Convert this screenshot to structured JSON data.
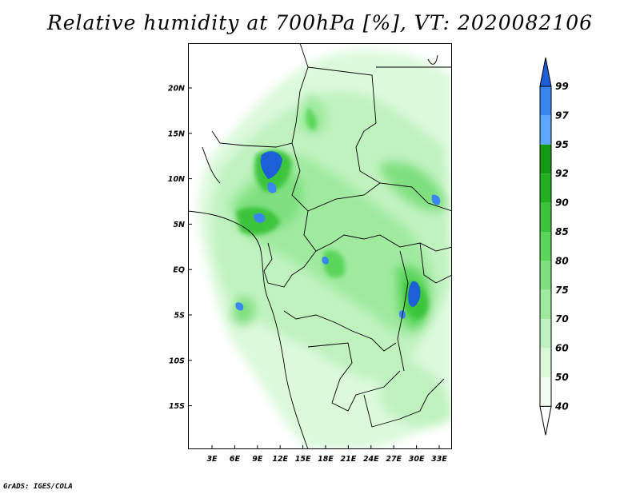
{
  "title": "Relative humidity at 700hPa [%], VT: 2020082106",
  "footer": "GrADS: IGES/COLA",
  "map": {
    "lat_labels": [
      "20N",
      "15N",
      "10N",
      "5N",
      "EQ",
      "5S",
      "10S",
      "15S"
    ],
    "lon_labels": [
      "3E",
      "6E",
      "9E",
      "12E",
      "15E",
      "18E",
      "21E",
      "24E",
      "27E",
      "30E",
      "33E"
    ]
  },
  "colorbar": {
    "labels": [
      "99",
      "97",
      "95",
      "92",
      "90",
      "85",
      "80",
      "75",
      "70",
      "60",
      "50",
      "40"
    ],
    "colors": [
      "#1c5fd6",
      "#3a86f0",
      "#5aa8ff",
      "#129a12",
      "#22b022",
      "#3cc43c",
      "#5ad65a",
      "#7fe07f",
      "#a0eaa0",
      "#c0f2c0",
      "#dcf9dc",
      "#f0fdf0",
      "#ffffff"
    ]
  }
}
